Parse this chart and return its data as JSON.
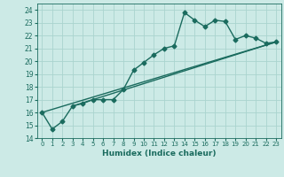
{
  "xlabel": "Humidex (Indice chaleur)",
  "background_color": "#cceae6",
  "grid_color": "#aad4cf",
  "line_color": "#1a6b5e",
  "xlim": [
    -0.5,
    23.5
  ],
  "ylim": [
    14,
    24.5
  ],
  "xticks": [
    0,
    1,
    2,
    3,
    4,
    5,
    6,
    7,
    8,
    9,
    10,
    11,
    12,
    13,
    14,
    15,
    16,
    17,
    18,
    19,
    20,
    21,
    22,
    23
  ],
  "yticks": [
    14,
    15,
    16,
    17,
    18,
    19,
    20,
    21,
    22,
    23,
    24
  ],
  "series1_x": [
    0,
    1,
    2,
    3,
    4,
    5,
    6,
    7,
    8,
    9,
    10,
    11,
    12,
    13,
    14,
    15,
    16,
    17,
    18,
    19,
    20,
    21,
    22,
    23
  ],
  "series1_y": [
    16.0,
    14.7,
    15.3,
    16.5,
    16.7,
    17.0,
    17.0,
    17.0,
    17.8,
    19.3,
    19.9,
    20.5,
    21.0,
    21.2,
    23.8,
    23.2,
    22.7,
    23.2,
    23.1,
    21.7,
    22.0,
    21.8,
    21.4,
    21.5
  ],
  "series2_x": [
    0,
    23
  ],
  "series2_y": [
    16.0,
    21.5
  ],
  "series3_x": [
    3,
    23
  ],
  "series3_y": [
    16.5,
    21.5
  ],
  "marker": "D",
  "markersize": 2.5,
  "linewidth": 1.0
}
